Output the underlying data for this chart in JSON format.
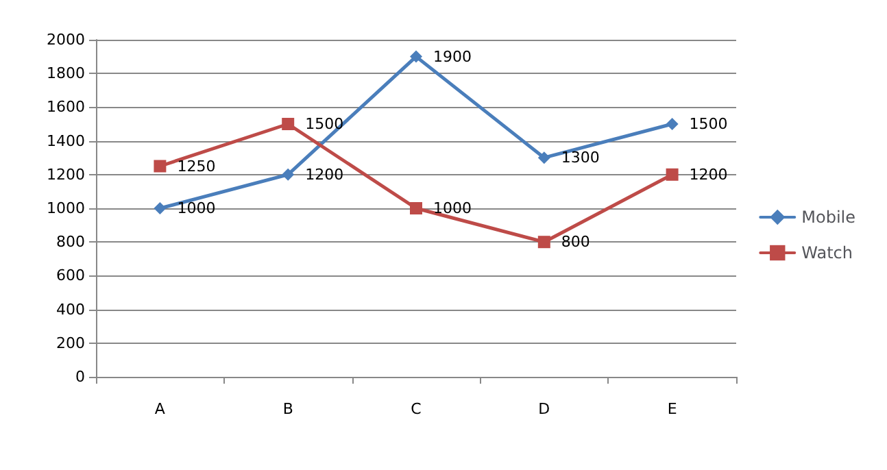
{
  "chart_data": {
    "type": "line",
    "categories": [
      "A",
      "B",
      "C",
      "D",
      "E"
    ],
    "series": [
      {
        "name": "Mobile",
        "color": "#4a7ebb",
        "marker": "diamond",
        "values": [
          1000,
          1200,
          1900,
          1300,
          1500
        ]
      },
      {
        "name": "Watch",
        "color": "#be4b48",
        "marker": "square",
        "values": [
          1250,
          1500,
          1000,
          800,
          1200
        ]
      }
    ],
    "ylim": [
      0,
      2000
    ],
    "yticks": [
      0,
      200,
      400,
      600,
      800,
      1000,
      1200,
      1400,
      1600,
      1800,
      2000
    ],
    "grid": "y",
    "legend": "right",
    "data_labels": true
  }
}
